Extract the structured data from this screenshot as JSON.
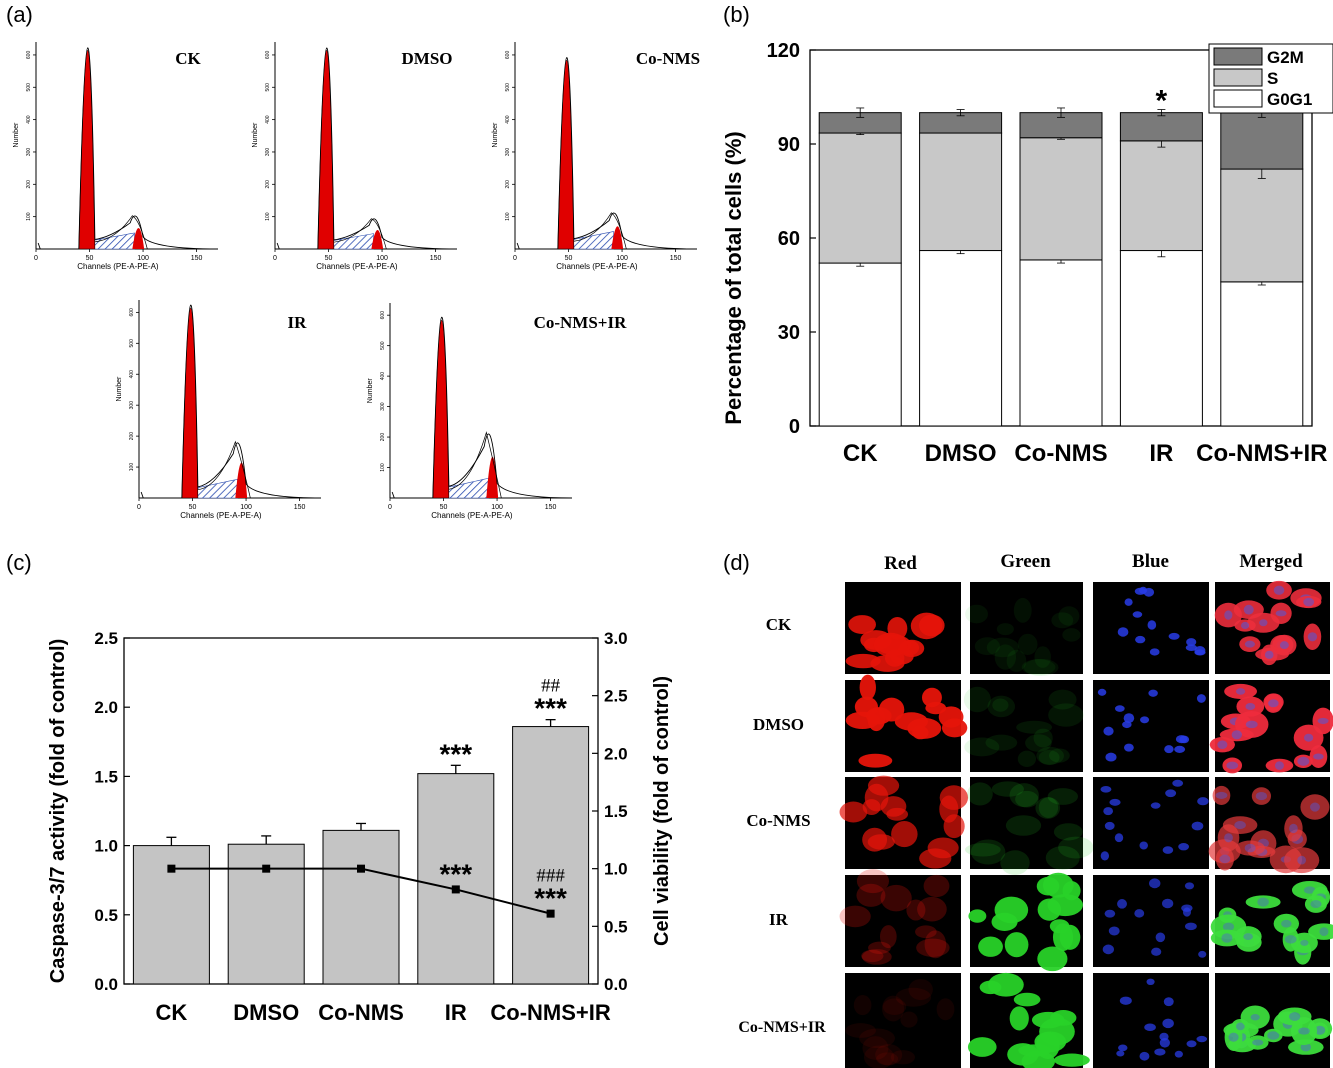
{
  "panel_labels": [
    "(a)",
    "(b)",
    "(c)",
    "(d)"
  ],
  "colors": {
    "red_peak": "#e00000",
    "hatch": "#2b4db0",
    "g2m": "#7a7a7a",
    "s_phase": "#c8c8c8",
    "g0g1": "#ffffff",
    "bar_gray": "#c4c4c4"
  },
  "histograms": {
    "axis_title": "Channels (PE-A-PE-A)",
    "y_title": "Number",
    "x_ticks": [
      "0",
      "50",
      "100",
      "150"
    ],
    "y_ticks": [
      "100",
      "200",
      "300",
      "400",
      "500",
      "600"
    ],
    "labels": [
      "CK",
      "DMSO",
      "Co-NMS",
      "IR",
      "Co-NMS+IR"
    ]
  },
  "chart_data": [
    {
      "panel": "(b)",
      "type": "bar",
      "stacked": true,
      "categories": [
        "CK",
        "DMSO",
        "Co-NMS",
        "IR",
        "Co-NMS+IR"
      ],
      "ylabel": "Percentage of total cells (%)",
      "ylim": [
        0,
        120
      ],
      "y_ticks": [
        "0",
        "30",
        "60",
        "90",
        "120"
      ],
      "legend": [
        "G2M",
        "S",
        "G0G1"
      ],
      "legend_position": "top-right",
      "series": [
        {
          "name": "G0G1",
          "values": [
            52,
            56,
            53,
            56,
            46
          ],
          "errors": [
            1,
            1,
            1,
            2,
            1
          ]
        },
        {
          "name": "S",
          "values": [
            41.5,
            37.5,
            39,
            35,
            36
          ],
          "errors": [
            0.5,
            0,
            0.5,
            2,
            3
          ]
        },
        {
          "name": "G2M",
          "values": [
            6.5,
            6.5,
            8,
            9,
            18
          ],
          "errors": [
            1.5,
            1,
            1.5,
            1,
            1.5
          ]
        }
      ],
      "annotations": [
        "",
        "",
        "",
        "*",
        "***"
      ]
    },
    {
      "panel": "(c)",
      "type": "bar",
      "categories": [
        "CK",
        "DMSO",
        "Co-NMS",
        "IR",
        "Co-NMS+IR"
      ],
      "ylabel": "Caspase-3/7 activity (fold of control)",
      "ylim": [
        0,
        2.5
      ],
      "y_ticks": [
        "0.0",
        "0.5",
        "1.0",
        "1.5",
        "2.0",
        "2.5"
      ],
      "bar_values": [
        1.0,
        1.01,
        1.11,
        1.52,
        1.86
      ],
      "bar_errors": [
        0.06,
        0.06,
        0.05,
        0.06,
        0.05
      ],
      "bar_annotations": [
        "",
        "",
        "",
        "***",
        "***"
      ],
      "bar_annotations_top": [
        "",
        "",
        "",
        "",
        "##"
      ],
      "y2label": "Cell viability (fold of control)",
      "y2lim": [
        0,
        3.0
      ],
      "y2_ticks": [
        "0.0",
        "0.5",
        "1.0",
        "1.5",
        "2.0",
        "2.5",
        "3.0"
      ],
      "line_values": [
        1.0,
        1.0,
        1.0,
        0.82,
        0.61
      ],
      "line_annotations": [
        "",
        "",
        "",
        "***",
        "***"
      ],
      "line_annotations_top": [
        "",
        "",
        "",
        "",
        "###"
      ]
    }
  ],
  "microscopy": {
    "columns": [
      "Red",
      "Green",
      "Blue",
      "Merged"
    ],
    "rows": [
      "CK",
      "DMSO",
      "Co-NMS",
      "IR",
      "Co-NMS+IR"
    ],
    "intensity": {
      "red": [
        0.9,
        0.95,
        0.7,
        0.25,
        0.08
      ],
      "green": [
        0.08,
        0.1,
        0.15,
        0.95,
        0.95
      ],
      "blue": [
        0.55,
        0.55,
        0.45,
        0.4,
        0.45
      ]
    }
  }
}
